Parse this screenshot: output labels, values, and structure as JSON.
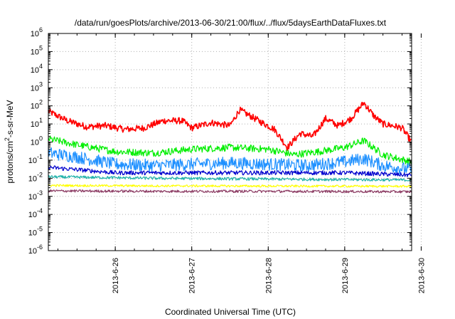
{
  "chart_data": {
    "type": "line",
    "title": "/data/run/goesPlots/archive/2013-06-30/21:00/flux/../flux/5daysEarthDataFluxes.txt",
    "xlabel": "Coordinated Universal Time (UTC)",
    "ylabel_parts": [
      "protons/cm",
      "2",
      "-s-sr-MeV"
    ],
    "y_scale": "log",
    "ylim": [
      1e-06,
      1000000.0
    ],
    "xlim": [
      "2013-06-25 03:00",
      "2013-06-29 21:00"
    ],
    "grid": true,
    "legend": "none",
    "x_ticks": [
      "2013-6-26",
      "2013-6-27",
      "2013-6-28",
      "2013-6-29",
      "2013-6-30"
    ],
    "y_ticks": [
      {
        "base": "10",
        "exp": "-6"
      },
      {
        "base": "10",
        "exp": "-5"
      },
      {
        "base": "10",
        "exp": "-4"
      },
      {
        "base": "10",
        "exp": "-3"
      },
      {
        "base": "10",
        "exp": "-2"
      },
      {
        "base": "10",
        "exp": "-1"
      },
      {
        "base": "10",
        "exp": "0"
      },
      {
        "base": "10",
        "exp": "1"
      },
      {
        "base": "10",
        "exp": "2"
      },
      {
        "base": "10",
        "exp": "3"
      },
      {
        "base": "10",
        "exp": "4"
      },
      {
        "base": "10",
        "exp": "5"
      },
      {
        "base": "10",
        "exp": "6"
      }
    ],
    "series": [
      {
        "color": "#ff0000",
        "noise": 0.18,
        "x": [
          "2013-06-25 03:00",
          "2013-06-25 09:00",
          "2013-06-25 15:00",
          "2013-06-25 21:00",
          "2013-06-26 03:00",
          "2013-06-26 09:00",
          "2013-06-26 15:00",
          "2013-06-26 21:00",
          "2013-06-27 00:00",
          "2013-06-27 06:00",
          "2013-06-27 12:00",
          "2013-06-27 15:00",
          "2013-06-27 18:00",
          "2013-06-27 22:00",
          "2013-06-28 02:00",
          "2013-06-28 06:00",
          "2013-06-28 10:00",
          "2013-06-28 14:00",
          "2013-06-28 18:00",
          "2013-06-28 22:00",
          "2013-06-29 02:00",
          "2013-06-29 06:00",
          "2013-06-29 09:00",
          "2013-06-29 12:00",
          "2013-06-29 15:00",
          "2013-06-29 18:00",
          "2013-06-29 21:00"
        ],
        "y": [
          50,
          15,
          7,
          8,
          5,
          6,
          15,
          15,
          6,
          12,
          8,
          60,
          30,
          12,
          5,
          0.5,
          3,
          2,
          20,
          8,
          20,
          150,
          30,
          10,
          8,
          6,
          1
        ]
      },
      {
        "color": "#00ee00",
        "noise": 0.2,
        "x": [
          "2013-06-25 03:00",
          "2013-06-25 12:00",
          "2013-06-26 00:00",
          "2013-06-26 12:00",
          "2013-06-27 00:00",
          "2013-06-27 12:00",
          "2013-06-28 00:00",
          "2013-06-28 08:00",
          "2013-06-28 16:00",
          "2013-06-29 00:00",
          "2013-06-29 06:00",
          "2013-06-29 12:00",
          "2013-06-29 21:00"
        ],
        "y": [
          1.5,
          0.7,
          0.3,
          0.25,
          0.4,
          0.5,
          0.4,
          0.2,
          0.3,
          0.5,
          1.2,
          0.2,
          0.08
        ]
      },
      {
        "color": "#1e90ff",
        "noise": 0.35,
        "x": [
          "2013-06-25 03:00",
          "2013-06-25 12:00",
          "2013-06-26 00:00",
          "2013-06-26 12:00",
          "2013-06-27 00:00",
          "2013-06-27 12:00",
          "2013-06-28 00:00",
          "2013-06-28 12:00",
          "2013-06-29 00:00",
          "2013-06-29 06:00",
          "2013-06-29 12:00",
          "2013-06-29 21:00"
        ],
        "y": [
          0.25,
          0.15,
          0.06,
          0.05,
          0.06,
          0.07,
          0.06,
          0.05,
          0.08,
          0.12,
          0.05,
          0.03
        ]
      },
      {
        "color": "#0000cd",
        "noise": 0.12,
        "x": [
          "2013-06-25 03:00",
          "2013-06-25 12:00",
          "2013-06-26 00:00",
          "2013-06-27 00:00",
          "2013-06-28 00:00",
          "2013-06-29 00:00",
          "2013-06-29 21:00"
        ],
        "y": [
          0.04,
          0.03,
          0.02,
          0.02,
          0.02,
          0.02,
          0.015
        ]
      },
      {
        "color": "#20b2aa",
        "noise": 0.08,
        "x": [
          "2013-06-25 03:00",
          "2013-06-26 12:00",
          "2013-06-28 00:00",
          "2013-06-29 21:00"
        ],
        "y": [
          0.012,
          0.01,
          0.009,
          0.008
        ]
      },
      {
        "color": "#ffff00",
        "noise": 0.06,
        "x": [
          "2013-06-25 03:00",
          "2013-06-26 12:00",
          "2013-06-28 00:00",
          "2013-06-29 21:00"
        ],
        "y": [
          0.004,
          0.0038,
          0.0037,
          0.0036
        ]
      },
      {
        "color": "#8b3a62",
        "noise": 0.07,
        "x": [
          "2013-06-25 03:00",
          "2013-06-26 12:00",
          "2013-06-28 00:00",
          "2013-06-29 21:00"
        ],
        "y": [
          0.002,
          0.0019,
          0.0019,
          0.0018
        ]
      }
    ]
  }
}
